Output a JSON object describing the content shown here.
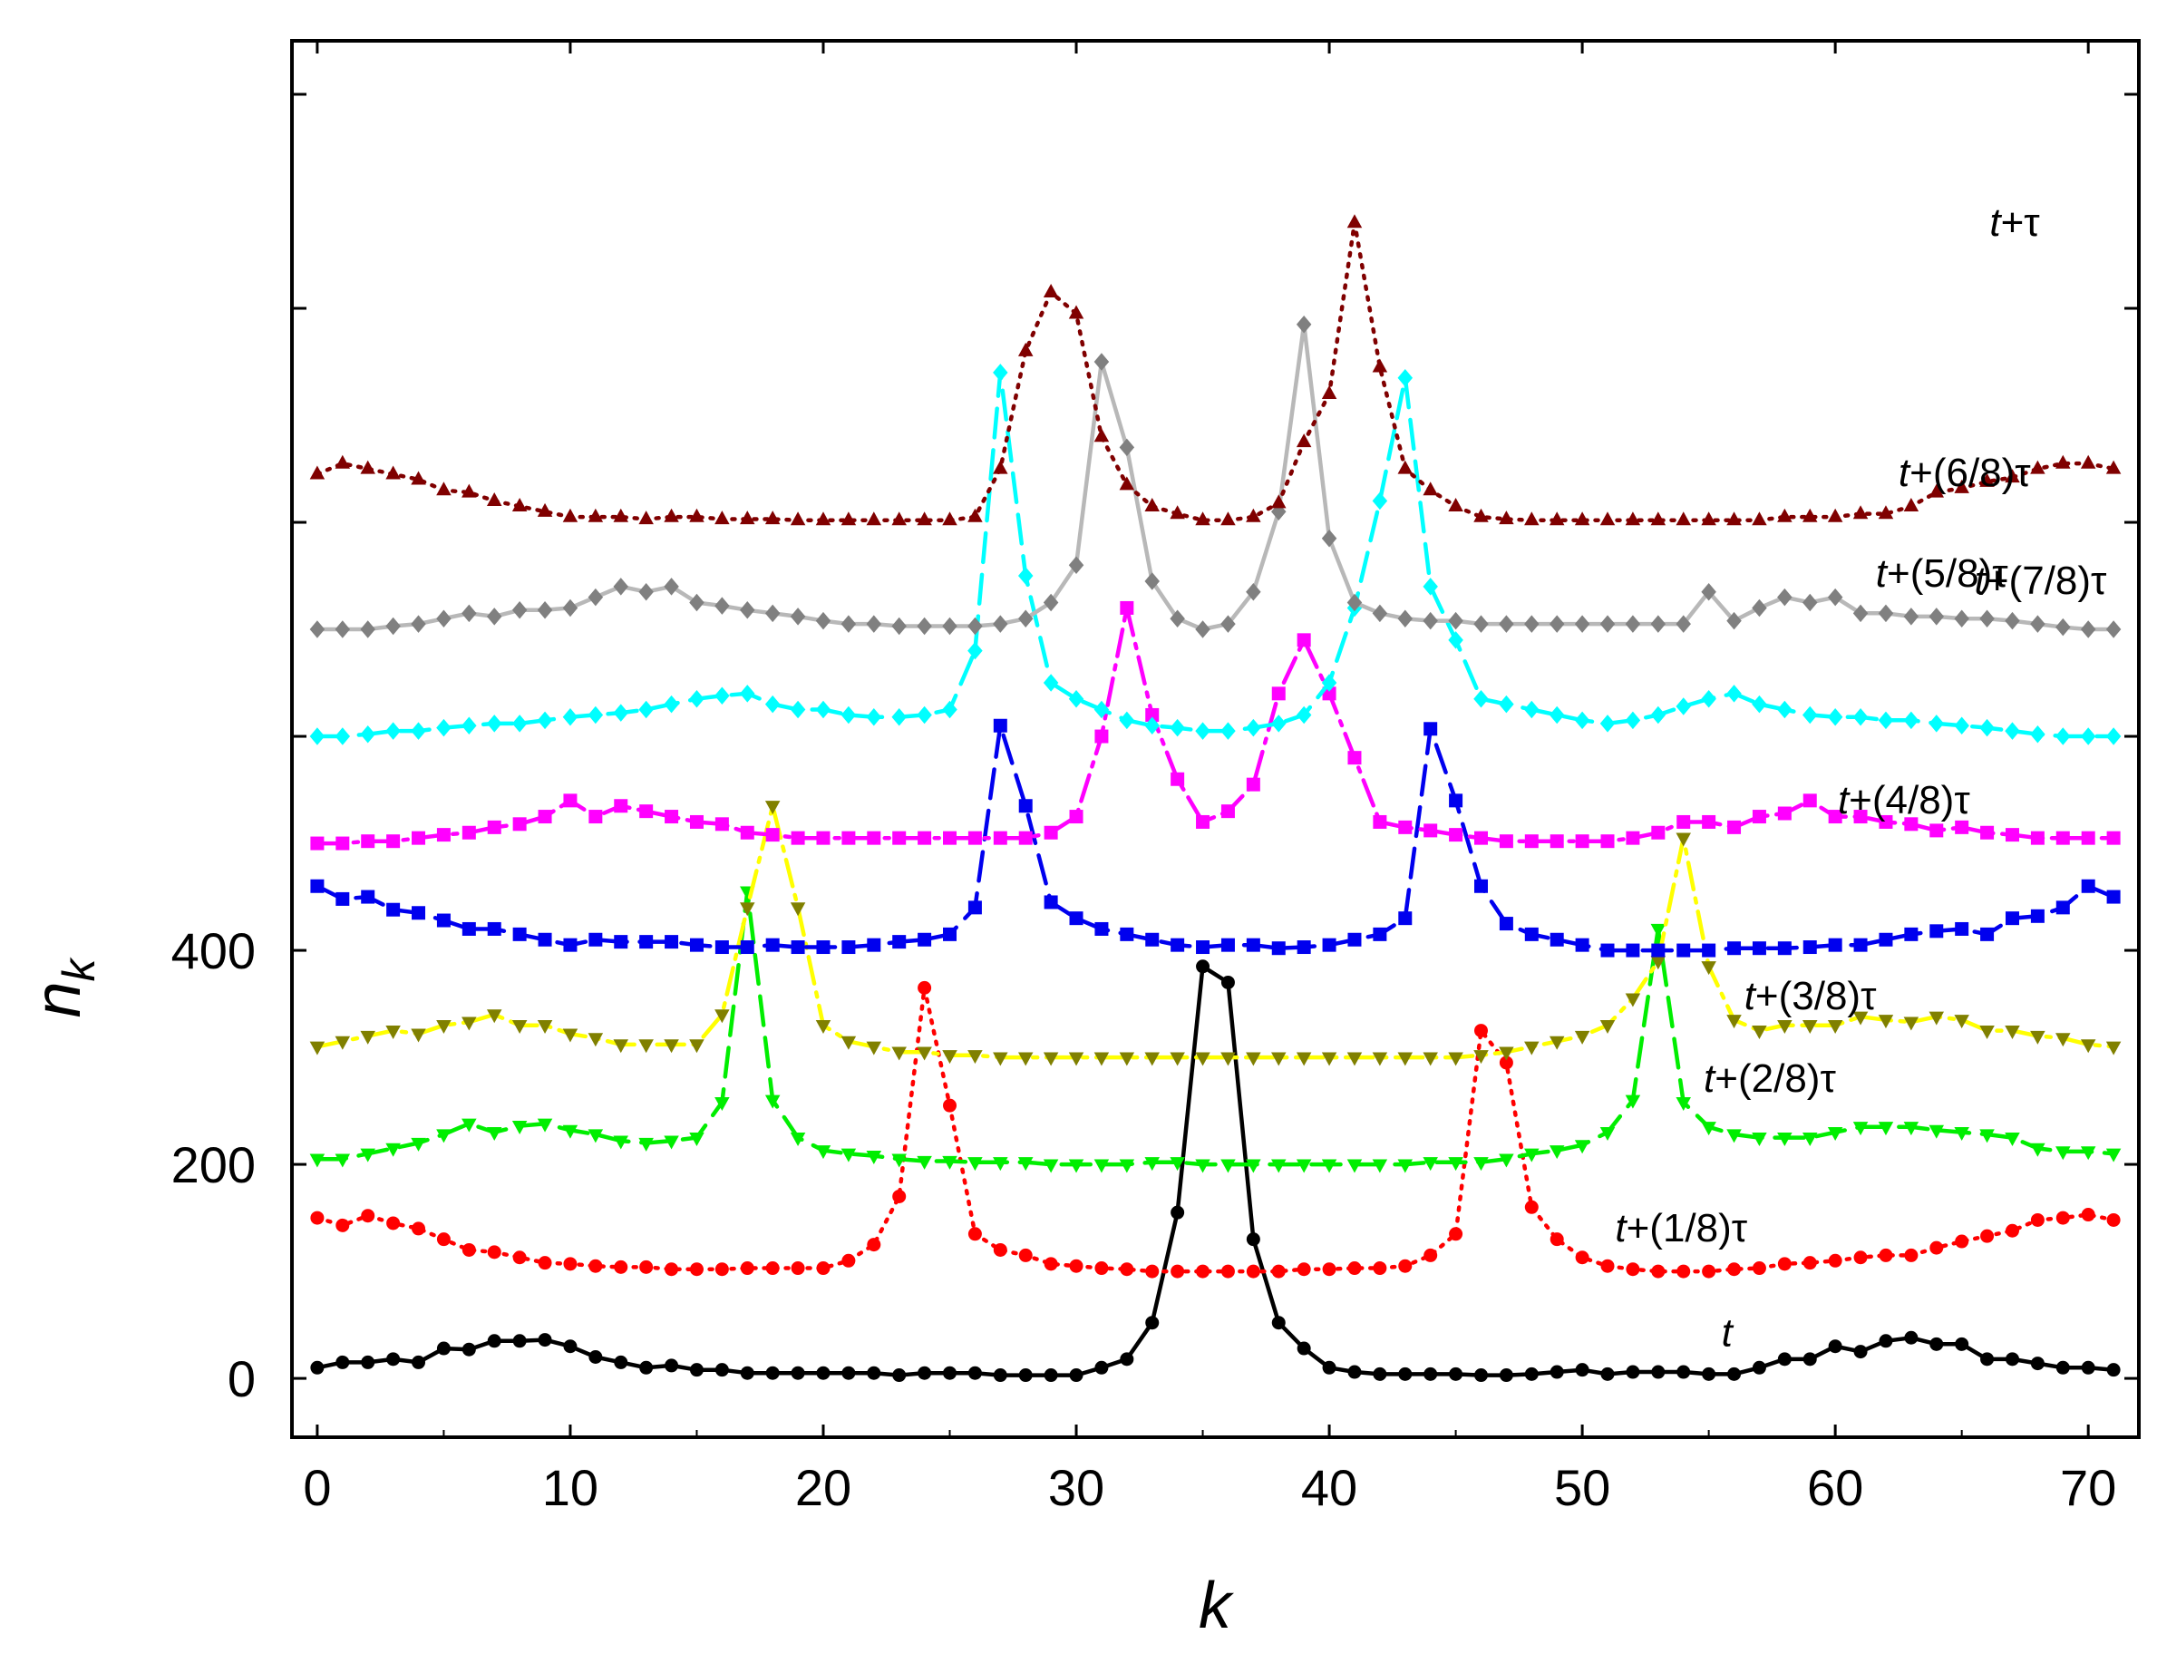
{
  "chart_data": {
    "type": "line",
    "title": "",
    "xlabel": "k",
    "ylabel_main": "n",
    "ylabel_sub": "k",
    "xlim": [
      -1,
      72
    ],
    "ylim": [
      -55,
      1250
    ],
    "xticks": [
      0,
      10,
      20,
      30,
      40,
      50,
      60,
      70
    ],
    "yticks": [
      0,
      200,
      400
    ],
    "yticks_unlabeled": [
      600,
      800,
      1000,
      1200
    ],
    "series": [
      {
        "name": "t",
        "label_main": "t",
        "label_rest": "",
        "color": "#000000",
        "marker": "circle",
        "dash": "solid",
        "label_x": 55.5,
        "label_y": 30,
        "values": [
          10,
          15,
          15,
          18,
          15,
          28,
          27,
          35,
          35,
          36,
          30,
          20,
          15,
          10,
          12,
          8,
          8,
          5,
          5,
          5,
          5,
          5,
          5,
          3,
          5,
          5,
          5,
          3,
          3,
          3,
          3,
          10,
          18,
          52,
          155,
          385,
          370,
          130,
          52,
          28,
          10,
          6,
          4,
          4,
          4,
          4,
          3,
          3,
          4,
          6,
          8,
          4,
          6,
          6,
          6,
          4,
          4,
          10,
          18,
          18,
          30,
          25,
          35,
          38,
          32,
          32,
          18,
          18,
          14,
          10,
          10,
          8
        ]
      },
      {
        "name": "t+(1/8)τ",
        "label_main": "t",
        "label_rest": "+(1/8)τ",
        "color": "#ff0000",
        "marker": "circle",
        "dash": "dotted",
        "label_x": 51.3,
        "label_y": 128,
        "values": [
          150,
          143,
          152,
          145,
          140,
          130,
          120,
          118,
          113,
          108,
          107,
          105,
          104,
          104,
          102,
          102,
          102,
          103,
          103,
          103,
          103,
          110,
          125,
          170,
          365,
          255,
          135,
          120,
          115,
          107,
          105,
          103,
          102,
          100,
          100,
          100,
          100,
          100,
          100,
          102,
          102,
          103,
          103,
          105,
          115,
          135,
          325,
          295,
          160,
          130,
          113,
          105,
          102,
          100,
          100,
          100,
          102,
          103,
          107,
          108,
          110,
          113,
          115,
          115,
          122,
          128,
          133,
          138,
          148,
          150,
          153,
          148
        ]
      },
      {
        "name": "t+(2/8)τ",
        "label_main": "t",
        "label_rest": "+(2/8)τ",
        "color": "#00ee00",
        "marker": "triangle-down",
        "dash": "dashed",
        "label_x": 54.8,
        "label_y": 268,
        "values": [
          205,
          205,
          210,
          215,
          220,
          228,
          238,
          230,
          236,
          238,
          232,
          228,
          222,
          220,
          222,
          225,
          258,
          455,
          260,
          225,
          213,
          210,
          208,
          205,
          203,
          203,
          202,
          202,
          202,
          200,
          200,
          200,
          200,
          202,
          202,
          200,
          200,
          200,
          200,
          200,
          200,
          200,
          200,
          200,
          202,
          202,
          202,
          205,
          210,
          213,
          218,
          230,
          260,
          420,
          258,
          235,
          228,
          225,
          225,
          225,
          230,
          235,
          235,
          235,
          232,
          230,
          228,
          225,
          215,
          212,
          212,
          210
        ]
      },
      {
        "name": "t+(3/8)τ",
        "label_main": "t",
        "label_rest": "+(3/8)τ",
        "color": "#808000",
        "line_color": "#ffff00",
        "marker": "triangle-down",
        "dash": "dash-dot",
        "label_x": 56.4,
        "label_y": 345,
        "values": [
          310,
          315,
          320,
          325,
          322,
          330,
          333,
          340,
          330,
          330,
          322,
          318,
          312,
          312,
          312,
          312,
          340,
          440,
          535,
          440,
          330,
          315,
          310,
          305,
          305,
          302,
          302,
          300,
          300,
          300,
          300,
          300,
          300,
          300,
          300,
          300,
          300,
          300,
          300,
          300,
          300,
          300,
          300,
          300,
          300,
          300,
          302,
          305,
          310,
          315,
          320,
          330,
          355,
          390,
          505,
          385,
          335,
          325,
          330,
          330,
          330,
          338,
          335,
          333,
          338,
          335,
          325,
          325,
          320,
          318,
          312,
          310
        ]
      },
      {
        "name": "t+(4/8)τ",
        "label_main": "t",
        "label_rest": "+(4/8)τ",
        "color": "#0000ee",
        "marker": "square",
        "dash": "dashed",
        "label_x": 60.1,
        "label_y": 528,
        "values": [
          460,
          448,
          450,
          438,
          435,
          428,
          420,
          420,
          415,
          410,
          405,
          410,
          408,
          408,
          408,
          405,
          403,
          403,
          405,
          403,
          403,
          403,
          405,
          408,
          410,
          415,
          440,
          610,
          535,
          445,
          430,
          420,
          415,
          410,
          405,
          403,
          405,
          405,
          402,
          403,
          405,
          410,
          415,
          430,
          607,
          540,
          460,
          425,
          415,
          410,
          405,
          400,
          400,
          400,
          400,
          400,
          402,
          402,
          402,
          403,
          405,
          405,
          410,
          415,
          418,
          420,
          415,
          430,
          432,
          440,
          460,
          450
        ]
      },
      {
        "name": "t+(5/8)τ",
        "label_main": "t",
        "label_rest": "+(5/8)τ",
        "color": "#ff00ff",
        "marker": "square",
        "dash": "dash-dot",
        "label_x": 61.6,
        "label_y": 740,
        "values": [
          500,
          500,
          502,
          502,
          505,
          508,
          510,
          515,
          518,
          525,
          540,
          525,
          535,
          530,
          525,
          520,
          518,
          510,
          508,
          505,
          505,
          505,
          505,
          505,
          505,
          505,
          505,
          505,
          505,
          510,
          525,
          600,
          720,
          620,
          560,
          520,
          530,
          555,
          640,
          690,
          640,
          580,
          520,
          515,
          512,
          508,
          505,
          502,
          502,
          502,
          502,
          502,
          505,
          510,
          520,
          520,
          515,
          525,
          528,
          540,
          525,
          525,
          520,
          518,
          512,
          515,
          510,
          508,
          505,
          505,
          505,
          505
        ]
      },
      {
        "name": "t+(6/8)τ",
        "label_main": "t",
        "label_rest": "+(6/8)τ",
        "color": "#00ffff",
        "marker": "diamond",
        "dash": "dashed",
        "label_x": 62.5,
        "label_y": 834,
        "values": [
          600,
          600,
          602,
          605,
          605,
          608,
          610,
          612,
          612,
          615,
          618,
          620,
          622,
          625,
          630,
          635,
          638,
          640,
          630,
          625,
          625,
          620,
          618,
          618,
          620,
          625,
          680,
          940,
          750,
          650,
          635,
          625,
          615,
          610,
          608,
          605,
          605,
          608,
          612,
          620,
          650,
          720,
          820,
          935,
          740,
          690,
          635,
          630,
          625,
          620,
          615,
          612,
          615,
          620,
          628,
          635,
          640,
          630,
          625,
          620,
          618,
          618,
          615,
          615,
          612,
          610,
          608,
          605,
          602,
          600,
          600,
          600
        ]
      },
      {
        "name": "t+(7/8)τ",
        "label_main": "t",
        "label_rest": "+(7/8)τ",
        "color": "#808080",
        "line_color": "#b8b8b8",
        "marker": "diamond",
        "dash": "solid",
        "label_x": 65.5,
        "label_y": 733,
        "values": [
          700,
          700,
          700,
          703,
          705,
          710,
          715,
          712,
          718,
          718,
          720,
          730,
          740,
          735,
          740,
          725,
          722,
          718,
          715,
          712,
          708,
          705,
          705,
          703,
          703,
          703,
          703,
          705,
          710,
          725,
          760,
          950,
          870,
          745,
          710,
          700,
          705,
          735,
          810,
          985,
          785,
          725,
          715,
          710,
          708,
          708,
          705,
          705,
          705,
          705,
          705,
          705,
          705,
          705,
          705,
          735,
          708,
          720,
          730,
          725,
          730,
          715,
          715,
          712,
          712,
          710,
          710,
          708,
          705,
          702,
          700,
          700
        ]
      },
      {
        "name": "t+τ",
        "label_main": "t",
        "label_rest": "+τ",
        "color": "#800000",
        "marker": "triangle-up",
        "dash": "dotted",
        "label_x": 66.1,
        "label_y": 1068,
        "values": [
          845,
          855,
          850,
          845,
          840,
          830,
          828,
          820,
          815,
          810,
          805,
          805,
          805,
          803,
          805,
          805,
          803,
          803,
          803,
          802,
          802,
          802,
          802,
          802,
          802,
          802,
          805,
          850,
          960,
          1015,
          995,
          880,
          835,
          815,
          808,
          802,
          802,
          805,
          818,
          875,
          920,
          1080,
          945,
          850,
          830,
          815,
          805,
          803,
          802,
          802,
          802,
          802,
          802,
          802,
          802,
          802,
          802,
          802,
          805,
          805,
          805,
          808,
          808,
          815,
          828,
          832,
          838,
          842,
          850,
          855,
          855,
          850
        ]
      }
    ]
  }
}
